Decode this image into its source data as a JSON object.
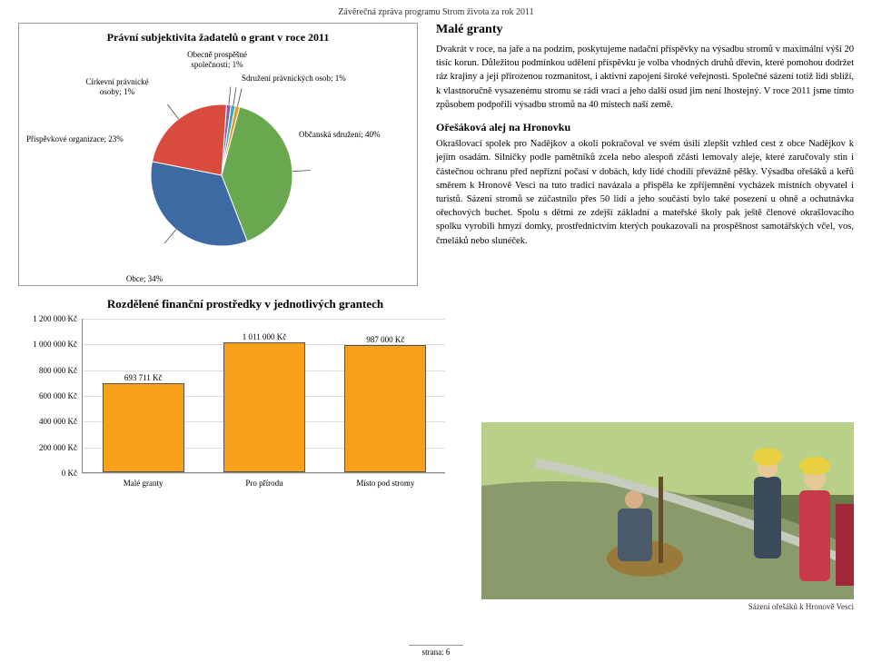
{
  "header": "Závěrečná zpráva programu Strom života za rok 2011",
  "pie": {
    "title": "Právní subjektivita žadatelů o grant v roce 2011",
    "slices": [
      {
        "label": "Občanská sdružení; 40%",
        "value": 40,
        "color": "#6aa84f"
      },
      {
        "label": "Obce; 34%",
        "value": 34,
        "color": "#3d6aa3"
      },
      {
        "label": "Příspěvkové organizace; 23%",
        "value": 23,
        "color": "#d94c3d"
      },
      {
        "label": "Církevní právnické osoby; 1%",
        "value": 1,
        "color": "#8e5ca8"
      },
      {
        "label": "Obecně prospěšné společnosti; 1%",
        "value": 1,
        "color": "#3ba9b8"
      },
      {
        "label": "Sdružení právnických osob; 1%",
        "value": 1,
        "color": "#e69a28"
      }
    ]
  },
  "text": {
    "h1": "Malé granty",
    "p1": "Dvakrát v roce, na jaře a na podzim, poskytujeme nadační příspěvky na výsadbu stromů v maximální výši 20 tisíc korun. Důležitou podmínkou udělení příspěvku je volba vhodných druhů dřevin, které pomohou dodržet ráz krajiny a její přirozenou rozmanitost, i aktivní zapojení široké veřejnosti. Společné sázení totiž lidi sblíží, k vlastnoručně vysazenému stromu se rádi vrací a jeho další osud jim není lhostejný. V roce 2011 jsme tímto způsobem podpořili výsadbu stromů na 40 místech naší země.",
    "h2": "Ořešáková alej na Hronovku",
    "p2": "Okrašlovací spolek pro Nadějkov a okolí pokračoval ve svém úsilí zlepšit vzhled cest z obce Nadějkov k jejím osadám. Silničky podle pamětníků zcela nebo alespoň zčásti lemovaly aleje, které zaručovaly stín i částečnou ochranu před nepřízní počasí v dobách, kdy lidé chodili převážně pěšky. Výsadba ořešáků a keřů směrem k Hronově Vesci na tuto tradici navázala a přispěla ke zpříjemnění vycházek místních obyvatel i turistů. Sázení stromů se zúčastnilo přes 50 lidí a jeho součástí bylo také posezení u ohně a ochutnávka ořechových buchet. Spolu s dětmi ze zdejší základní a mateřské školy pak ještě členové okrašlovacího spolku vyrobili hmyzí domky, prostřednictvím kterých poukazovali na prospěšnost samotářských včel, vos, čmeláků nebo slunéček."
  },
  "bar": {
    "title": "Rozdělené finanční prostředky v jednotlivých grantech",
    "ymax": 1200000,
    "ystep": 200000,
    "currency": "Kč",
    "bars": [
      {
        "label": "Malé granty",
        "value": 693711,
        "display": "693 711 Kč"
      },
      {
        "label": "Pro přírodu",
        "value": 1011000,
        "display": "1 011 000 Kč"
      },
      {
        "label": "Místo pod stromy",
        "value": 987000,
        "display": "987 000 Kč"
      }
    ],
    "bar_color": "#f7a11a",
    "bar_border": "#555555",
    "grid_color": "#dddddd"
  },
  "yticks": [
    "0 Kč",
    "200 000 Kč",
    "400 000 Kč",
    "600 000 Kč",
    "800 000 Kč",
    "1 000 000 Kč",
    "1 200 000 Kč"
  ],
  "photo_caption": "Sázení ořešáků k Hronově Vesci",
  "footer": "strana: 6"
}
